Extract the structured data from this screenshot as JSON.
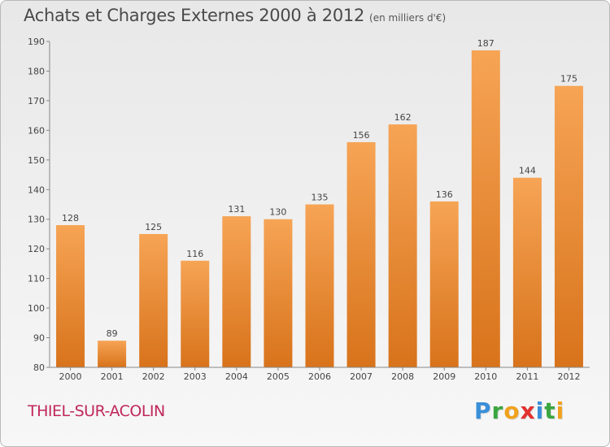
{
  "title": "Achats et Charges Externes 2000 à 2012",
  "subtitle": "(en milliers d'€)",
  "commune": "THIEL-SUR-ACOLIN",
  "logo": {
    "letters": [
      "P",
      "r",
      "o",
      "x",
      "i",
      "t",
      "i"
    ],
    "colors": [
      "#3a8fd8",
      "#3aa640",
      "#f0a21e",
      "#e2312e",
      "#3a8fd8",
      "#3aa640",
      "#f0a21e"
    ]
  },
  "colors": {
    "bar_top": "#f6a455",
    "bar_bottom": "#d8731b",
    "commune": "#c0285a"
  },
  "chart_data": {
    "type": "bar",
    "title": "Achats et Charges Externes 2000 à 2012",
    "categories": [
      "2000",
      "2001",
      "2002",
      "2003",
      "2004",
      "2005",
      "2006",
      "2007",
      "2008",
      "2009",
      "2010",
      "2011",
      "2012"
    ],
    "values": [
      128,
      89,
      125,
      116,
      131,
      130,
      135,
      156,
      162,
      136,
      187,
      144,
      175
    ],
    "ylim": [
      80,
      190
    ],
    "yticks": [
      80,
      90,
      100,
      110,
      120,
      130,
      140,
      150,
      160,
      170,
      180,
      190
    ],
    "grid": false,
    "data_labels": true
  }
}
